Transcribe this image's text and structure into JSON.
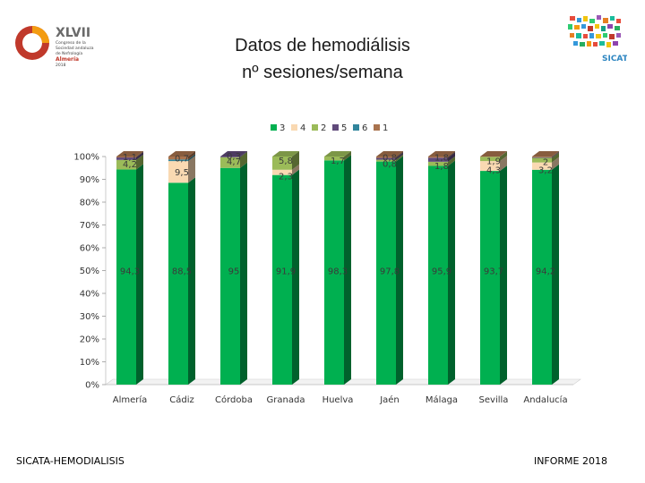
{
  "header": {
    "title_line1": "Datos de hemodiálisis",
    "title_line2": "nº sesiones/semana"
  },
  "logo_left": {
    "big": "XLVII",
    "line1": "Congreso de la",
    "line2": "Sociedad andaluza",
    "line3": "de Nefrología",
    "city": "Almería",
    "date": "2018"
  },
  "logo_right": {
    "name": "SICATA"
  },
  "footer": {
    "left": "SICATA-HEMODIALISIS",
    "right": "INFORME 2018"
  },
  "colors": {
    "s3": "#00b050",
    "s3_dark": "#0b6a2e",
    "s4": "#f9d9b2",
    "s2": "#9bbb59",
    "s5": "#604a7b",
    "s6": "#31859c",
    "s1": "#a9734e",
    "accent_red": "#c0392b"
  },
  "chart_data": {
    "type": "bar",
    "stacked": true,
    "percent": true,
    "categories": [
      "Almería",
      "Cádiz",
      "Córdoba",
      "Granada",
      "Huelva",
      "Jaén",
      "Málaga",
      "Sevilla",
      "Andalucía"
    ],
    "series": [
      {
        "name": "3",
        "values": [
          94.3,
          88.5,
          95,
          91.9,
          98.3,
          97.8,
          95.9,
          93.7,
          94.2
        ],
        "labels": [
          "94,3",
          "88,5",
          "95",
          "91,9",
          "98,3",
          "97,8",
          "95,9",
          "93,7",
          "94,2"
        ]
      },
      {
        "name": "4",
        "values": [
          0,
          9.5,
          0,
          2.3,
          0,
          0,
          0,
          4.3,
          3.2
        ],
        "labels": [
          "",
          "9,5",
          "",
          "2,3",
          "",
          "",
          "",
          "4,3",
          "3,2"
        ]
      },
      {
        "name": "2",
        "values": [
          4.2,
          0,
          4.7,
          5.8,
          1.7,
          0.8,
          1.8,
          1.9,
          2
        ],
        "labels": [
          "4,2",
          "",
          "4,7",
          "5,8",
          "1,7",
          "0,8",
          "1,8",
          "1,9",
          "2"
        ]
      },
      {
        "name": "5",
        "values": [
          1.1,
          0,
          0.3,
          0,
          0,
          0.8,
          1.8,
          0,
          0.3
        ],
        "labels": [
          "1,1",
          "",
          "0,3",
          "",
          "",
          "0,8",
          "1,8",
          "",
          ""
        ]
      },
      {
        "name": "6",
        "values": [
          0,
          0.7,
          0,
          0,
          0,
          0,
          0,
          0,
          0
        ],
        "labels": [
          "",
          "0,7",
          "",
          "",
          "",
          "",
          "",
          "",
          ""
        ]
      },
      {
        "name": "1",
        "values": [
          0.4,
          1.3,
          0,
          0,
          0,
          0.6,
          0.5,
          0.1,
          0.3
        ],
        "labels": [
          "",
          "",
          "",
          "",
          "",
          "",
          "",
          "",
          ""
        ]
      }
    ],
    "yticks": [
      "0%",
      "10%",
      "20%",
      "30%",
      "40%",
      "50%",
      "60%",
      "70%",
      "80%",
      "90%",
      "100%"
    ],
    "ylim": [
      0,
      100
    ],
    "legend_position": "top",
    "grid": false
  }
}
